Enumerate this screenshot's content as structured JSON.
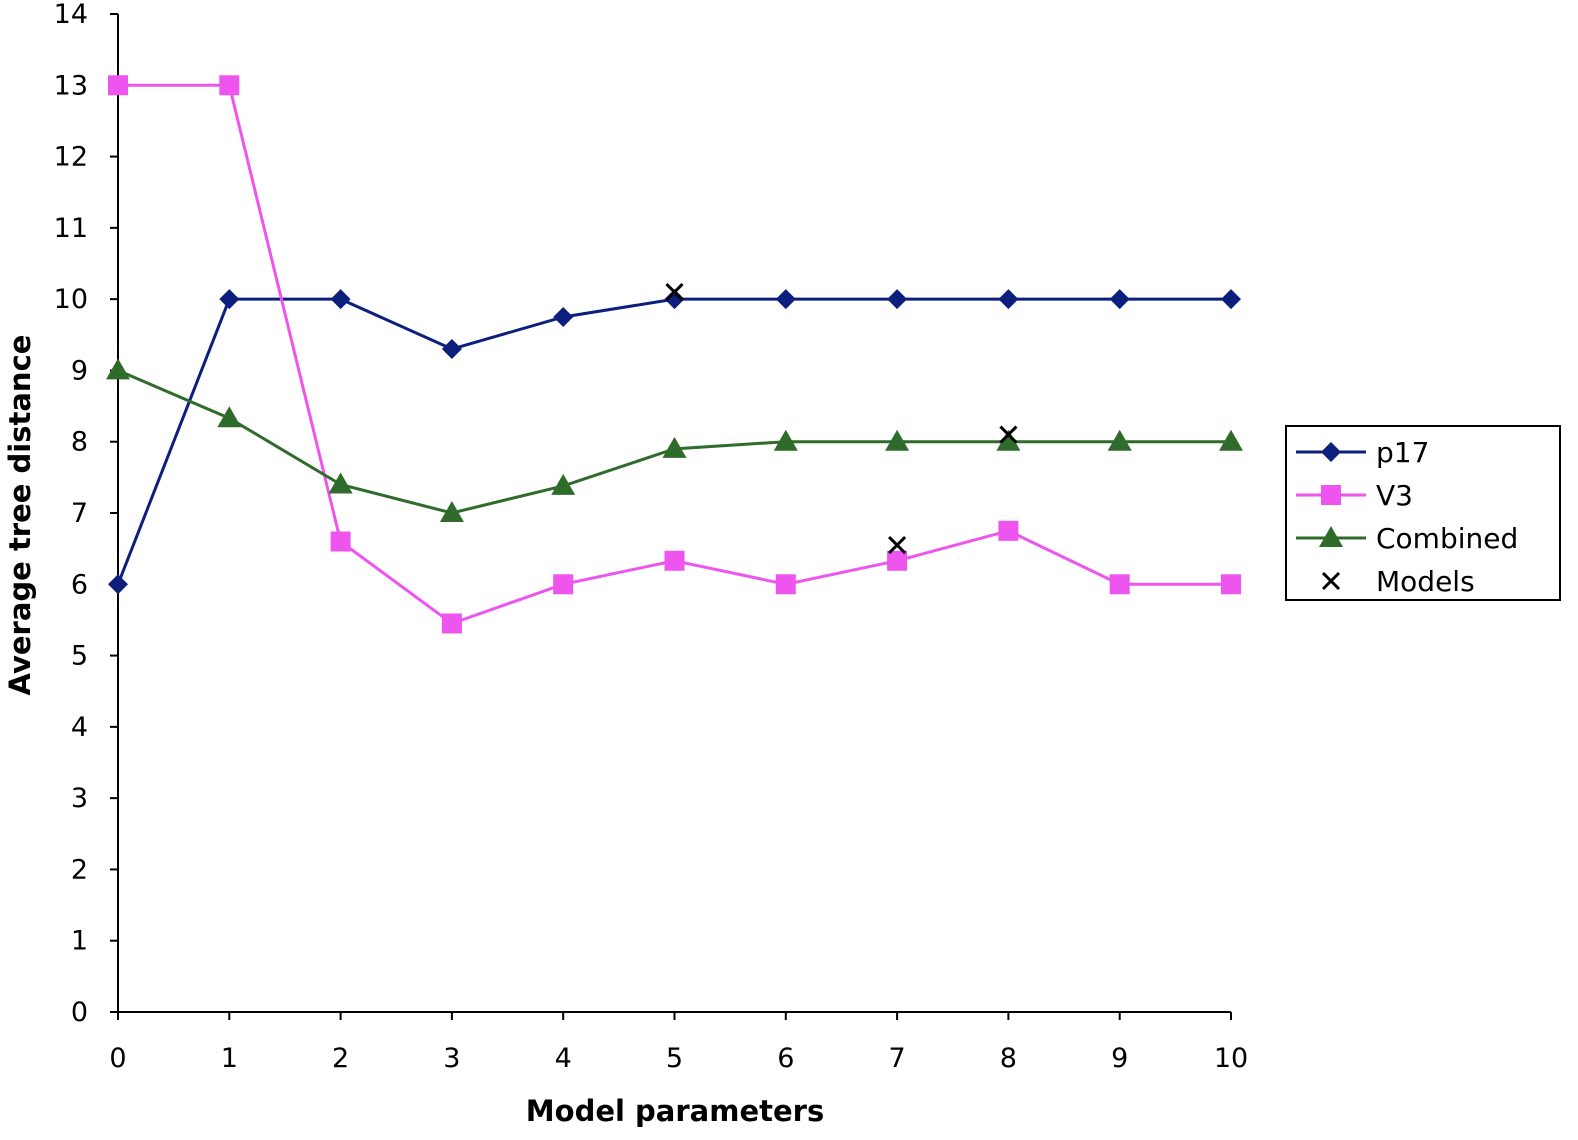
{
  "chart_data": {
    "type": "line",
    "title": "",
    "xlabel": "Model parameters",
    "ylabel": "Average tree distance",
    "x": [
      0,
      1,
      2,
      3,
      4,
      5,
      6,
      7,
      8,
      9,
      10
    ],
    "xlim": [
      0,
      10
    ],
    "ylim": [
      0,
      14
    ],
    "xticks": [
      "0",
      "1",
      "2",
      "3",
      "4",
      "5",
      "6",
      "7",
      "8",
      "9",
      "10"
    ],
    "yticks": [
      "0",
      "1",
      "2",
      "3",
      "4",
      "5",
      "6",
      "7",
      "8",
      "9",
      "10",
      "11",
      "12",
      "13",
      "14"
    ],
    "grid": false,
    "legend_position": "right",
    "series": [
      {
        "name": "p17",
        "marker": "diamond",
        "color": "#0d1f7c",
        "values": [
          6,
          10,
          10,
          9.3,
          9.75,
          10,
          10,
          10,
          10,
          10,
          10
        ]
      },
      {
        "name": "V3",
        "marker": "square",
        "color": "#ee55ee",
        "values": [
          13,
          13,
          6.6,
          5.45,
          6,
          6.33,
          6,
          6.33,
          6.75,
          6,
          6
        ]
      },
      {
        "name": "Combined",
        "marker": "triangle",
        "color": "#2f6b2a",
        "values": [
          9,
          8.33,
          7.4,
          7,
          7.38,
          7.9,
          8,
          8,
          8,
          8,
          8
        ]
      },
      {
        "name": "Models",
        "marker": "x",
        "color": "#000000",
        "points": [
          {
            "x": 5,
            "y": 10.1
          },
          {
            "x": 7,
            "y": 6.55
          },
          {
            "x": 8,
            "y": 8.1
          }
        ]
      }
    ]
  }
}
